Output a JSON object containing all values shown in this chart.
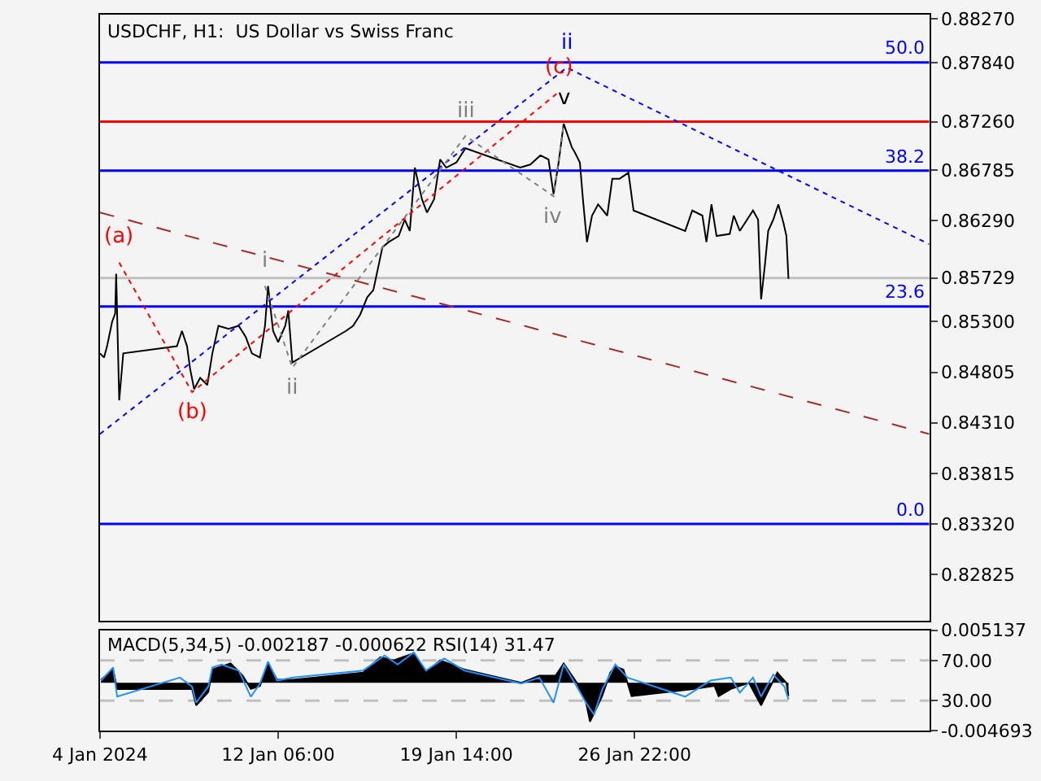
{
  "chart_data": [
    {
      "type": "line",
      "title": "USDCHF, H1:  US Dollar vs Swiss Franc",
      "tick_labels": "y",
      "grid": false,
      "xlim": [
        "2024-01-04T22:00",
        "2024-02-08T01:00"
      ],
      "ylim": [
        0.8237,
        0.8831
      ],
      "yticks": [
        {
          "value": 0.8827,
          "label": "0.88270"
        },
        {
          "value": 0.8784,
          "label": "0.87840"
        },
        {
          "value": 0.8726,
          "label": "0.87260"
        },
        {
          "value": 0.86785,
          "label": "0.86785"
        },
        {
          "value": 0.8629,
          "label": "0.86290"
        },
        {
          "value": 0.85729,
          "label": "0.85729"
        },
        {
          "value": 0.853,
          "label": "0.85300"
        },
        {
          "value": 0.84805,
          "label": "0.84805"
        },
        {
          "value": 0.8431,
          "label": "0.84310"
        },
        {
          "value": 0.83815,
          "label": "0.83815"
        },
        {
          "value": 0.8332,
          "label": "0.83320"
        },
        {
          "value": 0.82825,
          "label": "0.82825"
        }
      ],
      "series": [
        {
          "color": "#000000",
          "line_style": "solid",
          "x": [
            "2024-01-04T22:00",
            "2024-01-05T02:00",
            "2024-01-05T05:00",
            "2024-01-05T10:00",
            "2024-01-05T13:00",
            "2024-01-05T14:00",
            "2024-01-05T17:00",
            "2024-01-05T21:00",
            "2024-01-08T02:00",
            "2024-01-08T07:00",
            "2024-01-08T12:00",
            "2024-01-08T15:00",
            "2024-01-08T19:00",
            "2024-01-09T01:00",
            "2024-01-09T08:00",
            "2024-01-09T13:00",
            "2024-01-09T19:00",
            "2024-01-10T05:00",
            "2024-01-10T15:00",
            "2024-01-10T22:00",
            "2024-01-11T04:00",
            "2024-01-11T12:00",
            "2024-01-11T17:00",
            "2024-01-11T20:00",
            "2024-01-12T01:00",
            "2024-01-12T06:00",
            "2024-01-12T13:00",
            "2024-01-12T16:00",
            "2024-01-12T20:00",
            "2024-01-15T01:00",
            "2024-01-15T08:00",
            "2024-01-15T15:00",
            "2024-01-15T22:00",
            "2024-01-16T04:00",
            "2024-01-16T13:00",
            "2024-01-16T19:00",
            "2024-01-17T05:00",
            "2024-01-17T11:00",
            "2024-01-17T16:00",
            "2024-01-17T21:00",
            "2024-01-18T04:00",
            "2024-01-18T09:00",
            "2024-01-18T16:00",
            "2024-01-18T22:00",
            "2024-01-19T04:00",
            "2024-01-19T14:00",
            "2024-01-19T23:00",
            "2024-01-22T05:00",
            "2024-01-22T15:00",
            "2024-01-23T01:00",
            "2024-01-23T09:00",
            "2024-01-23T14:00",
            "2024-01-23T19:00",
            "2024-01-24T00:00",
            "2024-01-24T08:00",
            "2024-01-24T11:00",
            "2024-01-24T16:00",
            "2024-01-24T19:00",
            "2024-01-24T23:00",
            "2024-01-25T04:00",
            "2024-01-25T10:00",
            "2024-01-25T19:00",
            "2024-01-26T00:00",
            "2024-01-26T07:00",
            "2024-01-26T16:00",
            "2024-01-26T21:00",
            "2024-01-29T00:00",
            "2024-01-29T07:00",
            "2024-01-29T17:00",
            "2024-01-29T21:00",
            "2024-01-30T02:00",
            "2024-01-30T07:00",
            "2024-01-30T20:00",
            "2024-01-31T00:00",
            "2024-01-31T06:00",
            "2024-01-31T19:00",
            "2024-02-01T00:00",
            "2024-02-01T03:00",
            "2024-02-01T07:00",
            "2024-02-01T10:00",
            "2024-02-01T15:00",
            "2024-02-01T20:00",
            "2024-02-02T01:00",
            "2024-02-02T04:00",
            "2024-02-02T06:00"
          ],
          "values": [
            0.8499,
            0.8495,
            0.8506,
            0.853,
            0.8538,
            0.8577,
            0.8453,
            0.8499,
            0.8506,
            0.8521,
            0.8506,
            0.8484,
            0.8464,
            0.8475,
            0.8468,
            0.8499,
            0.8526,
            0.8523,
            0.8526,
            0.8515,
            0.8499,
            0.8495,
            0.8526,
            0.8565,
            0.8521,
            0.851,
            0.8526,
            0.8541,
            0.849,
            0.8521,
            0.8526,
            0.8537,
            0.8554,
            0.8561,
            0.8603,
            0.8608,
            0.8614,
            0.863,
            0.8619,
            0.8681,
            0.865,
            0.8637,
            0.865,
            0.8689,
            0.8681,
            0.8686,
            0.87,
            0.8681,
            0.8684,
            0.8693,
            0.8689,
            0.8655,
            0.8686,
            0.8724,
            0.8701,
            0.8696,
            0.8686,
            0.865,
            0.8608,
            0.8634,
            0.8645,
            0.8634,
            0.867,
            0.867,
            0.8676,
            0.8639,
            0.8619,
            0.8639,
            0.8634,
            0.8608,
            0.8645,
            0.8614,
            0.8616,
            0.8634,
            0.8619,
            0.8639,
            0.863,
            0.8552,
            0.8588,
            0.8619,
            0.863,
            0.8645,
            0.8627,
            0.8614,
            0.8572
          ]
        },
        {
          "color": "#0000ff",
          "line_style": "dotted",
          "x": [
            "2024-01-04T22:00",
            "2024-01-24T03:00",
            "2024-02-08T01:00"
          ],
          "values": [
            0.842,
            0.8779,
            0.8606
          ]
        },
        {
          "color": "#ff0000",
          "line_style": "dotted",
          "x": [
            "2024-01-05T17:00",
            "2024-01-08T17:00",
            "2024-01-23T19:00"
          ],
          "values": [
            0.8588,
            0.8461,
            0.8755
          ]
        },
        {
          "color": "#a52a2a",
          "line_style": "dashed",
          "x": [
            "2024-01-04T22:00",
            "2024-02-08T01:00"
          ],
          "values": [
            0.8637,
            0.842
          ]
        },
        {
          "color": "#808080",
          "line_style": "dotted",
          "x": [
            "2024-01-11T17:00",
            "2024-01-12T20:00",
            "2024-01-19T23:00",
            "2024-01-23T14:00",
            "2024-01-24T00:00"
          ],
          "values": [
            0.8565,
            0.8485,
            0.8712,
            0.8653,
            0.8724
          ]
        }
      ],
      "ref_lines": [
        {
          "axis": "y",
          "value": 0.8784,
          "color": "#0000ff"
        },
        {
          "axis": "y",
          "value": 0.8726,
          "color": "#ff0000"
        },
        {
          "axis": "y",
          "value": 0.8678,
          "color": "#0000ff"
        },
        {
          "axis": "y",
          "value": 0.85729,
          "color": "#c0c0c0"
        },
        {
          "axis": "y",
          "value": 0.8545,
          "color": "#0000ff"
        },
        {
          "axis": "y",
          "value": 0.8332,
          "color": "#0000ff"
        }
      ],
      "annotations": [
        {
          "text": "(a)",
          "x": "2024-01-05T17:00",
          "y": 0.8588
        },
        {
          "text": "(b)",
          "x": "2024-01-08T17:00",
          "y": 0.8461
        },
        {
          "text": "i",
          "x": "2024-01-11T17:00",
          "y": 0.8565
        },
        {
          "text": "ii",
          "x": "2024-01-12T20:00",
          "y": 0.8485
        },
        {
          "text": "iii",
          "x": "2024-01-19T23:00",
          "y": 0.8712
        },
        {
          "text": "iv",
          "x": "2024-01-23T14:00",
          "y": 0.8653
        },
        {
          "text": "v",
          "x": "2024-01-24T00:00",
          "y": 0.8724
        },
        {
          "text": "(c)",
          "x": "2024-01-23T19:00",
          "y": 0.8755
        },
        {
          "text": "ii",
          "x": "2024-01-24T03:00",
          "y": 0.8779
        },
        {
          "text": "50.0",
          "x": "2024-02-08T01:00",
          "y": 0.8784
        },
        {
          "text": "38.2",
          "x": "2024-02-08T01:00",
          "y": 0.8678
        },
        {
          "text": "23.6",
          "x": "2024-02-08T01:00",
          "y": 0.8545
        },
        {
          "text": "0.0",
          "x": "2024-02-08T01:00",
          "y": 0.8332
        }
      ]
    },
    {
      "type": "area",
      "title": "MACD(5,34,5) -0.002187 -0.000622 RSI(14) 31.47",
      "grid": false,
      "xlim": [
        "2024-01-04T22:00",
        "2024-02-08T01:00"
      ],
      "xticks": [
        {
          "value": "2024-01-04T22:00",
          "label": "4 Jan 2024"
        },
        {
          "value": "2024-01-12T06:00",
          "label": "12 Jan 06:00"
        },
        {
          "value": "2024-01-19T14:00",
          "label": "19 Jan 14:00"
        },
        {
          "value": "2024-01-26T22:00",
          "label": "26 Jan 22:00"
        }
      ],
      "ylim": [
        -0.004693,
        0.005137
      ],
      "yticks": [
        0.005137,
        -0.004693
      ],
      "y2lim": [
        0,
        100
      ],
      "y2ticks": [
        {
          "value": 70,
          "label": "70.00"
        },
        {
          "value": 30,
          "label": "30.00"
        }
      ],
      "series": [
        {
          "type": "area",
          "color": "#000000",
          "x": [
            "2024-01-04T23:00",
            "2024-01-05T11:00",
            "2024-01-05T15:00",
            "2024-01-08T17:00",
            "2024-01-08T21:00",
            "2024-01-09T09:00",
            "2024-01-09T13:00",
            "2024-01-10T07:00",
            "2024-01-10T19:00",
            "2024-01-11T03:00",
            "2024-01-11T12:00",
            "2024-01-11T20:00",
            "2024-01-12T05:00",
            "2024-01-12T21:00",
            "2024-01-15T18:00",
            "2024-01-16T11:00",
            "2024-01-17T00:00",
            "2024-01-17T20:00",
            "2024-01-18T08:00",
            "2024-01-18T22:00",
            "2024-01-19T22:00",
            "2024-01-22T06:00",
            "2024-01-23T00:00",
            "2024-01-23T16:00",
            "2024-01-24T00:00",
            "2024-01-24T13:00",
            "2024-01-24T22:00",
            "2024-01-25T02:00",
            "2024-01-25T14:00",
            "2024-01-25T22:00",
            "2024-01-26T03:00",
            "2024-01-26T11:00",
            "2024-01-26T19:00",
            "2024-01-29T08:00",
            "2024-01-30T05:00",
            "2024-01-30T09:00",
            "2024-01-30T21:00",
            "2024-01-31T15:00",
            "2024-02-01T03:00",
            "2024-02-01T11:00",
            "2024-02-01T19:00",
            "2024-02-02T04:00",
            "2024-02-02T06:00"
          ],
          "values": [
            0.0003,
            0.0013,
            -0.0006,
            -0.0006,
            -0.0022,
            -0.0009,
            0.0013,
            0.0019,
            0.0007,
            -0.0006,
            -0.0003,
            0.0019,
            0.0003,
            0.0003,
            0.001,
            0.0025,
            0.0022,
            0.0029,
            0.001,
            0.0022,
            0.0013,
            0.0,
            0.0007,
            0.0007,
            0.0019,
            0.0,
            -0.0019,
            -0.0038,
            -0.0013,
            0.001,
            0.0016,
            0.0013,
            -0.0013,
            -0.0006,
            -0.0003,
            -0.0013,
            -0.0006,
            0.0,
            -0.0022,
            -0.0006,
            0.001,
            0.0,
            -0.0013
          ]
        },
        {
          "type": "line",
          "axis": "y2",
          "color": "#1e90ff",
          "x": [
            "2024-01-04T23:00",
            "2024-01-05T11:00",
            "2024-01-05T15:00",
            "2024-01-08T05:00",
            "2024-01-08T17:00",
            "2024-01-08T21:00",
            "2024-01-09T09:00",
            "2024-01-09T13:00",
            "2024-01-09T22:00",
            "2024-01-10T15:00",
            "2024-01-11T03:00",
            "2024-01-11T12:00",
            "2024-01-11T20:00",
            "2024-01-12T05:00",
            "2024-01-12T21:00",
            "2024-01-15T18:00",
            "2024-01-16T15:00",
            "2024-01-17T04:00",
            "2024-01-17T20:00",
            "2024-01-18T08:00",
            "2024-01-19T02:00",
            "2024-01-19T22:00",
            "2024-01-22T06:00",
            "2024-01-23T00:00",
            "2024-01-23T14:00",
            "2024-01-24T00:00",
            "2024-01-24T13:00",
            "2024-01-24T22:00",
            "2024-01-25T06:00",
            "2024-01-25T14:00",
            "2024-01-26T03:00",
            "2024-01-26T15:00",
            "2024-01-29T00:00",
            "2024-01-30T01:00",
            "2024-01-30T21:00",
            "2024-01-31T06:00",
            "2024-01-31T19:00",
            "2024-02-01T03:00",
            "2024-02-01T15:00",
            "2024-02-02T02:00",
            "2024-02-02T06:00"
          ],
          "values": [
            50,
            63,
            34,
            53,
            44,
            28,
            44,
            63,
            66,
            60,
            34,
            47,
            69,
            50,
            53,
            60,
            75,
            66,
            78,
            60,
            72,
            60,
            47,
            53,
            28,
            66,
            44,
            28,
            16,
            41,
            66,
            53,
            34,
            50,
            53,
            38,
            53,
            34,
            56,
            44,
            31
          ]
        }
      ],
      "ref_lines": [
        {
          "axis": "y2",
          "value": 70,
          "color": "#c0c0c0",
          "line_style": "dashed"
        },
        {
          "axis": "y2",
          "value": 30,
          "color": "#c0c0c0",
          "line_style": "dashed"
        }
      ]
    }
  ]
}
